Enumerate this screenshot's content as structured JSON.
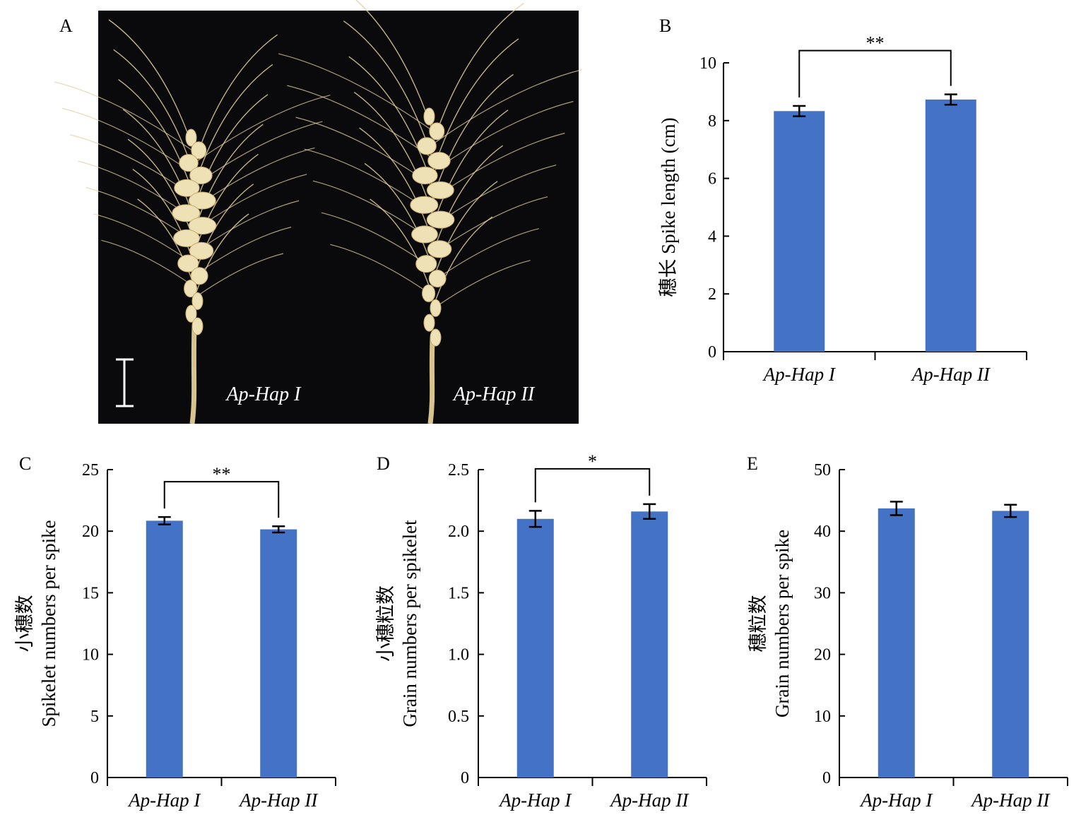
{
  "colors": {
    "bar": "#4472c4",
    "photo_bg": "#0a0a0c",
    "spike": "#e2cfa0"
  },
  "panel_a": {
    "letter": "A",
    "labels": [
      "Ap-Hap I",
      "Ap-Hap II"
    ]
  },
  "chart_data": [
    {
      "type": "bar",
      "panel": "B",
      "categories": [
        "Ap-Hap I",
        "Ap-Hap II"
      ],
      "values": [
        8.33,
        8.73
      ],
      "errors": [
        0.18,
        0.18
      ],
      "ylabel": "穗长 Spike length (cm)",
      "ylim": [
        0,
        10
      ],
      "yticks": [
        0,
        2,
        4,
        6,
        8,
        10
      ],
      "tick_labels": [
        "0",
        "2",
        "4",
        "6",
        "8",
        "10"
      ],
      "significance": "**"
    },
    {
      "type": "bar",
      "panel": "C",
      "categories": [
        "Ap-Hap I",
        "Ap-Hap II"
      ],
      "values": [
        20.85,
        20.15
      ],
      "errors": [
        0.3,
        0.25
      ],
      "ylabel_lines": [
        "小穗数",
        "Spikelet numbers per spike"
      ],
      "ylim": [
        0,
        25
      ],
      "yticks": [
        0,
        5,
        10,
        15,
        20,
        25
      ],
      "tick_labels": [
        "0",
        "5",
        "10",
        "15",
        "20",
        "25"
      ],
      "significance": "**"
    },
    {
      "type": "bar",
      "panel": "D",
      "categories": [
        "Ap-Hap I",
        "Ap-Hap II"
      ],
      "values": [
        2.1,
        2.16
      ],
      "errors": [
        0.065,
        0.06
      ],
      "ylabel_lines": [
        "小穗粒数",
        "Grain numbers per spikelet"
      ],
      "ylim": [
        0,
        2.5
      ],
      "yticks": [
        0,
        0.5,
        1.0,
        1.5,
        2.0,
        2.5
      ],
      "tick_labels": [
        "0",
        "0.5",
        "1.0",
        "1.5",
        "2.0",
        "2.5"
      ],
      "significance": "*"
    },
    {
      "type": "bar",
      "panel": "E",
      "categories": [
        "Ap-Hap I",
        "Ap-Hap II"
      ],
      "values": [
        43.7,
        43.3
      ],
      "errors": [
        1.1,
        1.0
      ],
      "ylabel_lines": [
        "穗粒数",
        "Grain numbers per spike"
      ],
      "ylim": [
        0,
        50
      ],
      "yticks": [
        0,
        10,
        20,
        30,
        40,
        50
      ],
      "tick_labels": [
        "0",
        "10",
        "20",
        "30",
        "40",
        "50"
      ],
      "significance": ""
    }
  ]
}
